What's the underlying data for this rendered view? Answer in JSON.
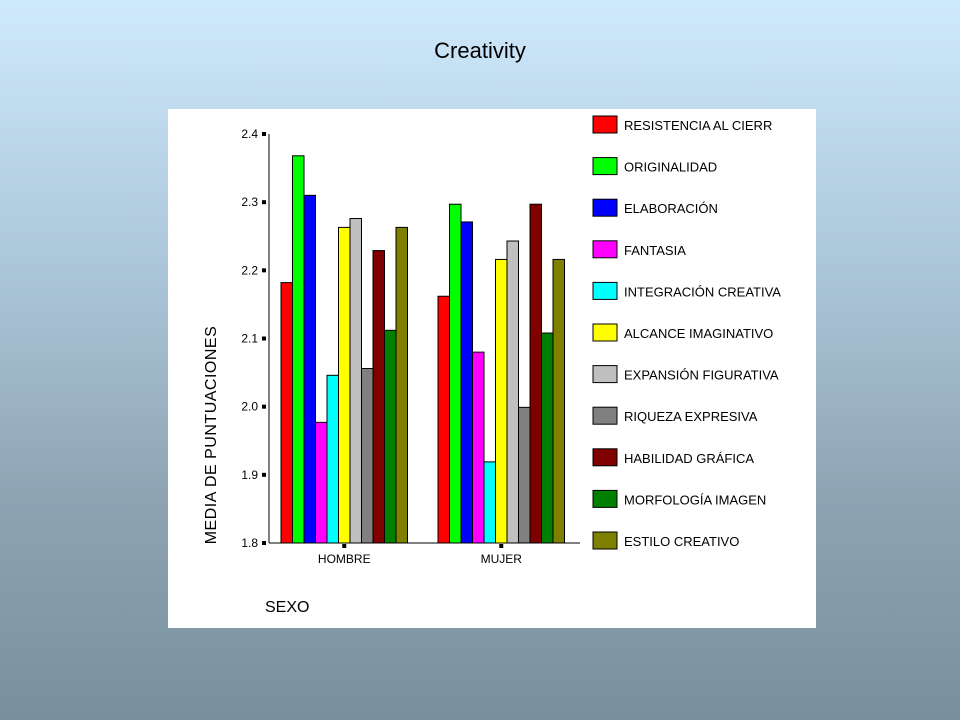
{
  "slide": {
    "title": "Creativity"
  },
  "chart_data": {
    "type": "bar",
    "title": "",
    "xlabel": "SEXO",
    "ylabel": "MEDIA DE PUNTUACIONES",
    "ylim": [
      1.8,
      2.4
    ],
    "yticks": [
      "1.8",
      "1.9",
      "2.0",
      "2.1",
      "2.2",
      "2.3",
      "2.4"
    ],
    "categories": [
      "HOMBRE",
      "MUJER"
    ],
    "legend_position": "right",
    "series": [
      {
        "name": "RESISTENCIA AL CIERR",
        "color": "#ff0000",
        "values": [
          2.182,
          2.162
        ]
      },
      {
        "name": "ORIGINALIDAD",
        "color": "#00ff00",
        "values": [
          2.368,
          2.297
        ]
      },
      {
        "name": "ELABORACIÓN",
        "color": "#0000ff",
        "values": [
          2.31,
          2.271
        ]
      },
      {
        "name": "FANTASIA",
        "color": "#ff00ff",
        "values": [
          1.977,
          2.08
        ]
      },
      {
        "name": "INTEGRACIÓN CREATIVA",
        "color": "#00ffff",
        "values": [
          2.046,
          1.919
        ]
      },
      {
        "name": "ALCANCE IMAGINATIVO",
        "color": "#ffff00",
        "values": [
          2.263,
          2.216
        ]
      },
      {
        "name": "EXPANSIÓN FIGURATIVA",
        "color": "#c0c0c0",
        "values": [
          2.276,
          2.243
        ]
      },
      {
        "name": "RIQUEZA EXPRESIVA",
        "color": "#808080",
        "values": [
          2.056,
          1.999
        ]
      },
      {
        "name": "HABILIDAD GRÁFICA",
        "color": "#800000",
        "values": [
          2.229,
          2.297
        ]
      },
      {
        "name": "MORFOLOGÍA IMAGEN",
        "color": "#008000",
        "values": [
          2.112,
          2.108
        ]
      },
      {
        "name": "ESTILO CREATIVO",
        "color": "#808000",
        "values": [
          2.263,
          2.216
        ]
      }
    ]
  }
}
